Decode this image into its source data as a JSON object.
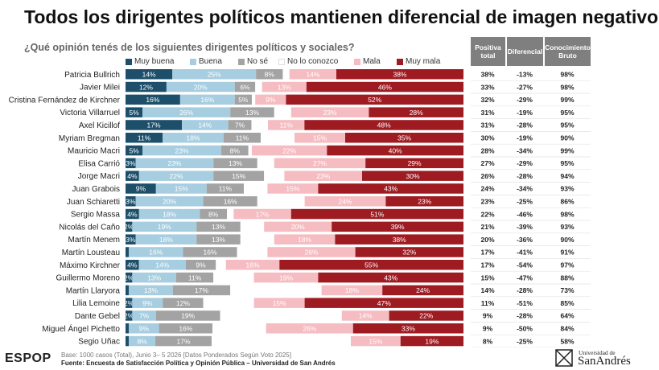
{
  "title": "Todos los dirigentes políticos mantienen diferencial de imagen negativo.",
  "subtitle": "¿Qué opinión tenés de los siguientes dirigentes políticos y sociales?",
  "columns": {
    "positiva_total": "Positiva total",
    "diferencial": "Diferencial",
    "conocimiento": "Conocimiento Bruto"
  },
  "footer": {
    "logo": "ESPOP",
    "base": "Base: 1000 casos (Total), Junio 3– 5 2026 [Datos Ponderados Según Voto 2025]",
    "source": "Fuente: Encuesta de Satisfacción Política y Opinión Pública – Universidad de San Andrés",
    "university_small": "Universidad de",
    "university_big": "SanAndrés"
  },
  "colors": {
    "muy_buena": "#1d4f6a",
    "buena": "#a7cde0",
    "no_se": "#a3a3a3",
    "no_lo_conozco": "#ffffff",
    "mala": "#f5bcc2",
    "muy_mala": "#9e1b22",
    "header_bg": "#7f7f7f"
  },
  "chart_data": {
    "type": "bar",
    "orientation": "horizontal",
    "stacked": true,
    "series_names": [
      "Muy buena",
      "Buena",
      "No sé",
      "No lo conozco",
      "Mala",
      "Muy mala"
    ],
    "categories": [
      "Patricia Bullrich",
      "Javier Milei",
      "Cristina Fernández de Kirchner",
      "Victoria Villarruel",
      "Axel Kicillof",
      "Myriam Bregman",
      "Mauricio Macri",
      "Elisa Carrió",
      "Jorge Macri",
      "Juan Grabois",
      "Juan Schiaretti",
      "Sergio Massa",
      "Nicolás del Caño",
      "Martín Menem",
      "Martín Lousteau",
      "Máximo Kirchner",
      "Guillermo Moreno",
      "Martín Llaryora",
      "Lilia Lemoine",
      "Dante Gebel",
      "Miguel Ángel Pichetto",
      "Segio Uñac"
    ],
    "series": [
      {
        "name": "Muy buena",
        "values": [
          14,
          12,
          16,
          5,
          17,
          11,
          5,
          3,
          4,
          9,
          3,
          4,
          2,
          3,
          1,
          4,
          2,
          1,
          2,
          2,
          1,
          1
        ]
      },
      {
        "name": "Buena",
        "values": [
          25,
          20,
          16,
          26,
          14,
          18,
          23,
          23,
          22,
          15,
          20,
          18,
          19,
          18,
          16,
          14,
          13,
          13,
          9,
          7,
          9,
          8
        ]
      },
      {
        "name": "No sé",
        "values": [
          8,
          6,
          5,
          13,
          7,
          11,
          8,
          13,
          15,
          11,
          16,
          8,
          13,
          13,
          16,
          9,
          11,
          17,
          12,
          19,
          16,
          17
        ]
      },
      {
        "name": "No lo conozco",
        "values": [
          2,
          2,
          1,
          5,
          5,
          10,
          1,
          5,
          6,
          7,
          14,
          2,
          7,
          10,
          9,
          3,
          12,
          27,
          15,
          36,
          16,
          42
        ]
      },
      {
        "name": "Mala",
        "values": [
          14,
          13,
          9,
          23,
          11,
          15,
          22,
          27,
          23,
          15,
          24,
          17,
          20,
          18,
          26,
          16,
          19,
          18,
          15,
          14,
          26,
          15
        ]
      },
      {
        "name": "Muy mala",
        "values": [
          38,
          46,
          52,
          28,
          48,
          35,
          40,
          29,
          30,
          43,
          23,
          51,
          39,
          38,
          32,
          55,
          43,
          24,
          47,
          22,
          33,
          19
        ]
      }
    ],
    "label_texts": [
      [
        "14%",
        "25%",
        "8%",
        "",
        "14%",
        "38%"
      ],
      [
        "12%",
        "20%",
        "6%",
        "",
        "13%",
        "46%"
      ],
      [
        "16%",
        "16%",
        "5%",
        "",
        "9%",
        "52%"
      ],
      [
        "5%",
        "26%",
        "13%",
        "",
        "23%",
        "28%"
      ],
      [
        "17%",
        "14%",
        "7%",
        "",
        "11%",
        "48%"
      ],
      [
        "11%",
        "18%",
        "11%",
        "",
        "15%",
        "35%"
      ],
      [
        "5%",
        "23%",
        "8%",
        "",
        "22%",
        "40%"
      ],
      [
        "3%",
        "23%",
        "13%",
        "",
        "27%",
        "29%"
      ],
      [
        "4%",
        "22%",
        "15%",
        "",
        "23%",
        "30%"
      ],
      [
        "9%",
        "15%",
        "11%",
        "",
        "15%",
        "43%"
      ],
      [
        "3%",
        "20%",
        "16%",
        "",
        "24%",
        "23%"
      ],
      [
        "4%",
        "18%",
        "8%",
        "",
        "17%",
        "51%"
      ],
      [
        "2%",
        "19%",
        "13%",
        "",
        "20%",
        "39%"
      ],
      [
        "3%",
        "18%",
        "13%",
        "",
        "18%",
        "38%"
      ],
      [
        "",
        "16%",
        "16%",
        "",
        "26%",
        "32%"
      ],
      [
        "4%",
        "14%",
        "9%",
        "",
        "16%",
        "55%"
      ],
      [
        "2%",
        "13%",
        "11%",
        "",
        "19%",
        "43%"
      ],
      [
        "",
        "13%",
        "17%",
        "",
        "18%",
        "24%"
      ],
      [
        "2%",
        "9%",
        "12%",
        "",
        "15%",
        "47%"
      ],
      [
        "2%",
        "7%",
        "19%",
        "",
        "14%",
        "22%"
      ],
      [
        "",
        "9%",
        "16%",
        "",
        "26%",
        "33%"
      ],
      [
        "",
        "8%",
        "17%",
        "",
        "15%",
        "19%"
      ]
    ],
    "positiva_total": [
      "38%",
      "33%",
      "32%",
      "31%",
      "31%",
      "30%",
      "28%",
      "27%",
      "26%",
      "24%",
      "23%",
      "22%",
      "21%",
      "20%",
      "17%",
      "17%",
      "15%",
      "14%",
      "11%",
      "9%",
      "9%",
      "8%"
    ],
    "diferencial": [
      "-13%",
      "-27%",
      "-29%",
      "-19%",
      "-28%",
      "-19%",
      "-34%",
      "-29%",
      "-28%",
      "-34%",
      "-25%",
      "-46%",
      "-39%",
      "-36%",
      "-41%",
      "-54%",
      "-47%",
      "-28%",
      "-51%",
      "-28%",
      "-50%",
      "-25%"
    ],
    "conocimiento_bruto": [
      "98%",
      "98%",
      "99%",
      "95%",
      "95%",
      "90%",
      "99%",
      "95%",
      "94%",
      "93%",
      "86%",
      "98%",
      "93%",
      "90%",
      "91%",
      "97%",
      "88%",
      "73%",
      "85%",
      "64%",
      "84%",
      "58%"
    ],
    "xlim": [
      0,
      100
    ],
    "legend_position": "top"
  }
}
